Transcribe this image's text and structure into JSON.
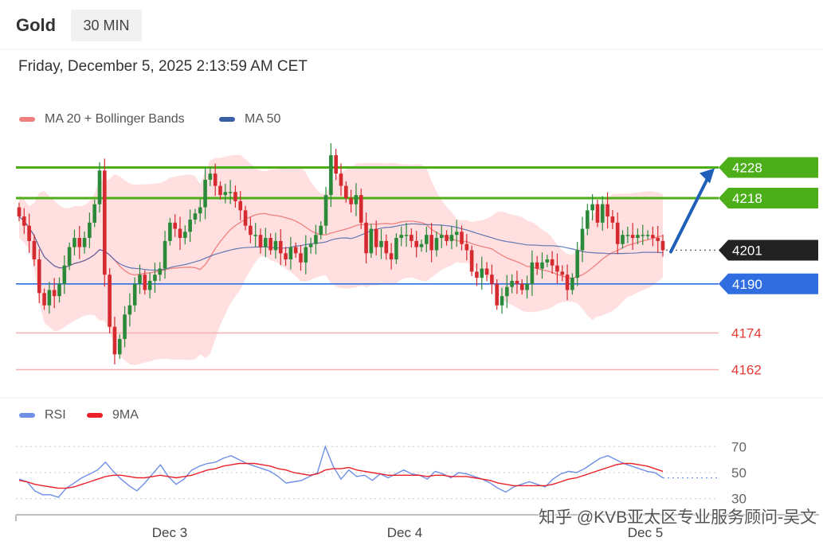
{
  "header": {
    "symbol": "Gold",
    "timeframe": "30 MIN"
  },
  "timestamp": "Friday, December 5, 2025 2:13:59 AM CET",
  "colors": {
    "up": "#2a8a3a",
    "down": "#d42a30",
    "bollinger_fill": "#ffd9d9",
    "ma20": "#f08080",
    "ma50": "#3b5ea8",
    "resistance": "#4caf1a",
    "support": "#2f6de0",
    "reference": "#f4b4b4",
    "rsi": "#6f8fe6",
    "rsi_ma": "#e8212b"
  },
  "legend": {
    "ma20_bb": "MA 20 + Bollinger Bands",
    "ma50": "MA 50",
    "rsi": "RSI",
    "rsi_ma": "9MA"
  },
  "watermark": "知乎 @KVB亚太区专业服务顾问-吴文",
  "chart_data": [
    {
      "type": "candlestick",
      "title": "",
      "x_labels": [
        "Dec 3",
        "Dec 4",
        "Dec 5"
      ],
      "ylim": [
        4158,
        4238
      ],
      "current_price": 4201,
      "levels": [
        {
          "value": 4228,
          "label": "4228",
          "style": "resistance"
        },
        {
          "value": 4218,
          "label": "4218",
          "style": "resistance"
        },
        {
          "value": 4190,
          "label": "4190",
          "style": "support"
        },
        {
          "value": 4174,
          "label": "4174",
          "style": "reference"
        },
        {
          "value": 4162,
          "label": "4162",
          "style": "reference"
        }
      ],
      "projection": {
        "from": 4201,
        "to": 4228,
        "direction": "up"
      },
      "close": [
        4212,
        4209,
        4204,
        4198,
        4187,
        4183,
        4188,
        4186,
        4190,
        4196,
        4202,
        4205,
        4202,
        4205,
        4210,
        4216,
        4227,
        4193,
        4176,
        4167,
        4172,
        4180,
        4183,
        4190,
        4193,
        4188,
        4191,
        4193,
        4195,
        4204,
        4210,
        4208,
        4205,
        4207,
        4211,
        4213,
        4215,
        4224,
        4226,
        4222,
        4219,
        4220,
        4220,
        4217,
        4214,
        4209,
        4206,
        4206,
        4202,
        4205,
        4201,
        4204,
        4200,
        4198,
        4202,
        4200,
        4197,
        4202,
        4203,
        4206,
        4209,
        4219,
        4232,
        4226,
        4222,
        4218,
        4216,
        4219,
        4210,
        4200,
        4208,
        4202,
        4204,
        4200,
        4198,
        4205,
        4206,
        4206,
        4204,
        4202,
        4203,
        4206,
        4201,
        4205,
        4206,
        4204,
        4206,
        4207,
        4203,
        4201,
        4194,
        4192,
        4195,
        4193,
        4190,
        4183,
        4186,
        4189,
        4191,
        4190,
        4188,
        4190,
        4197,
        4195,
        4197,
        4198,
        4196,
        4194,
        4193,
        4188,
        4192,
        4201,
        4208,
        4214,
        4216,
        4210,
        4216,
        4212,
        4210,
        4203,
        4206,
        4206,
        4205,
        4206,
        4206,
        4206,
        4205,
        4204,
        4201
      ],
      "rsi": {
        "ylim": [
          28,
          72
        ],
        "ticks": [
          70,
          50,
          30
        ],
        "rsi_values": [
          45,
          43,
          36,
          33,
          33,
          31,
          38,
          42,
          46,
          49,
          52,
          58,
          51,
          45,
          40,
          36,
          42,
          49,
          56,
          47,
          41,
          45,
          52,
          55,
          57,
          58,
          61,
          63,
          60,
          57,
          55,
          53,
          51,
          47,
          42,
          43,
          44,
          47,
          50,
          70,
          55,
          45,
          52,
          47,
          48,
          44,
          49,
          46,
          49,
          52,
          49,
          48,
          45,
          51,
          49,
          46,
          50,
          49,
          47,
          45,
          42,
          38,
          35,
          39,
          41,
          43,
          41,
          39,
          45,
          49,
          51,
          50,
          53,
          57,
          61,
          63,
          60,
          57,
          55,
          53,
          51,
          50,
          46
        ],
        "ma_values": [
          44,
          43,
          41,
          40,
          39,
          38,
          38,
          39,
          41,
          43,
          45,
          47,
          48,
          48,
          47,
          46,
          46,
          47,
          48,
          47,
          46,
          47,
          48,
          50,
          52,
          53,
          55,
          56,
          57,
          57,
          57,
          56,
          55,
          53,
          52,
          50,
          49,
          48,
          49,
          52,
          53,
          53,
          54,
          52,
          51,
          50,
          49,
          48,
          48,
          48,
          48,
          48,
          47,
          48,
          48,
          47,
          47,
          47,
          46,
          45,
          44,
          42,
          41,
          40,
          40,
          40,
          40,
          40,
          41,
          43,
          45,
          46,
          48,
          50,
          52,
          54,
          56,
          57,
          57,
          56,
          55,
          53,
          51
        ]
      }
    }
  ]
}
